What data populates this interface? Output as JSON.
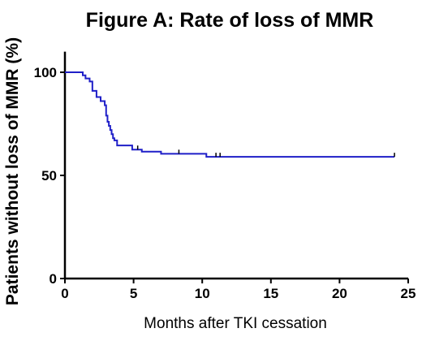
{
  "chart_data": {
    "type": "line",
    "title": "Figure A: Rate of loss of MMR",
    "xlabel": "Months after TKI cessation",
    "ylabel": "Patients without loss of MMR (%)",
    "xlim": [
      0,
      25
    ],
    "ylim": [
      0,
      110
    ],
    "xticks": [
      "0",
      "5",
      "10",
      "15",
      "20",
      "25"
    ],
    "yticks": [
      "0",
      "50",
      "100"
    ],
    "grid": false,
    "legend": "none",
    "series": [
      {
        "color": "#1f1fc8",
        "step": true,
        "x": [
          0,
          1.3,
          1.5,
          1.8,
          2.0,
          2.3,
          2.6,
          2.9,
          3.0,
          3.1,
          3.2,
          3.3,
          3.4,
          3.5,
          3.6,
          3.8,
          4.9,
          5.6,
          7.0,
          10.3,
          24.0
        ],
        "y": [
          100,
          98.5,
          97,
          95.5,
          91,
          88,
          86,
          84,
          79,
          76,
          74,
          72,
          70,
          68,
          67,
          64.5,
          62.5,
          61.5,
          60.5,
          59,
          59
        ],
        "censored": [
          5.3,
          8.3,
          11.0,
          11.3,
          24.0
        ]
      }
    ]
  }
}
